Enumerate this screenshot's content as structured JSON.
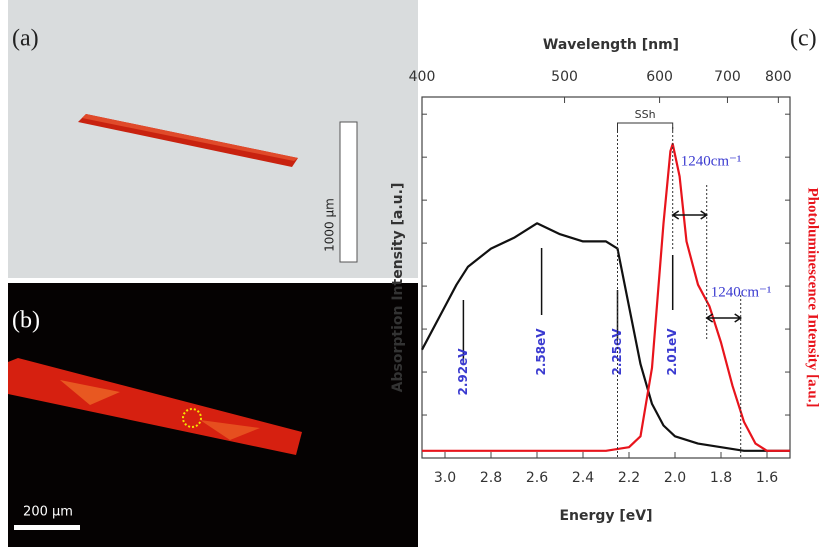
{
  "panels": {
    "a": {
      "label": "(a)",
      "scale_bar": "1000 µm"
    },
    "b": {
      "label": "(b)",
      "scale_bar": "200 µm"
    },
    "c": {
      "label": "(c)"
    }
  },
  "chart_data": {
    "type": "line",
    "x_label": "Energy [eV]",
    "x2_label": "Wavelength [nm]",
    "y_label": "Absorption Intensity [a.u.]",
    "y2_label": "Photoluminescence Intensity [a.u.]",
    "xlim": [
      3.1,
      1.5
    ],
    "xticks": [
      {
        "value": 3,
        "label": "3.0"
      },
      2.8,
      2.6,
      2.4,
      2.2,
      {
        "value": 2,
        "label": "2.0"
      },
      1.8,
      1.6
    ],
    "x2lim": [
      400,
      827
    ],
    "x2scale": "reciprocal",
    "x2ticks": [
      400,
      500,
      600,
      700,
      800
    ],
    "ylim": [
      0,
      1
    ],
    "y2lim": [
      0,
      1
    ],
    "series": [
      {
        "color": "#111111",
        "x": [
          3.1,
          3.0,
          2.95,
          2.9,
          2.8,
          2.7,
          2.6,
          2.5,
          2.4,
          2.3,
          2.25,
          2.2,
          2.15,
          2.1,
          2.05,
          2.0,
          1.9,
          1.8,
          1.7,
          1.6,
          1.5
        ],
        "values": [
          0.3,
          0.42,
          0.48,
          0.53,
          0.58,
          0.61,
          0.65,
          0.62,
          0.6,
          0.6,
          0.58,
          0.42,
          0.26,
          0.15,
          0.09,
          0.06,
          0.04,
          0.03,
          0.02,
          0.02,
          0.02
        ]
      },
      {
        "color": "#e8141c",
        "axis": "y2",
        "x": [
          3.1,
          2.6,
          2.3,
          2.2,
          2.15,
          2.1,
          2.05,
          2.02,
          2.01,
          1.98,
          1.95,
          1.9,
          1.85,
          1.8,
          1.75,
          1.7,
          1.65,
          1.6,
          1.5
        ],
        "values": [
          0.02,
          0.02,
          0.02,
          0.03,
          0.06,
          0.25,
          0.65,
          0.85,
          0.87,
          0.78,
          0.6,
          0.48,
          0.42,
          0.32,
          0.2,
          0.1,
          0.04,
          0.02,
          0.02
        ]
      }
    ],
    "annotations": [
      {
        "x": 2.92,
        "label": "2.92eV"
      },
      {
        "x": 2.58,
        "label": "2.58eV"
      },
      {
        "x": 2.25,
        "label": "2.25eV"
      },
      {
        "x": 2.01,
        "label": "2.01eV"
      }
    ],
    "bracket_label": "SSh",
    "shift_labels": [
      "1240cm⁻¹",
      "1240cm⁻¹"
    ]
  }
}
